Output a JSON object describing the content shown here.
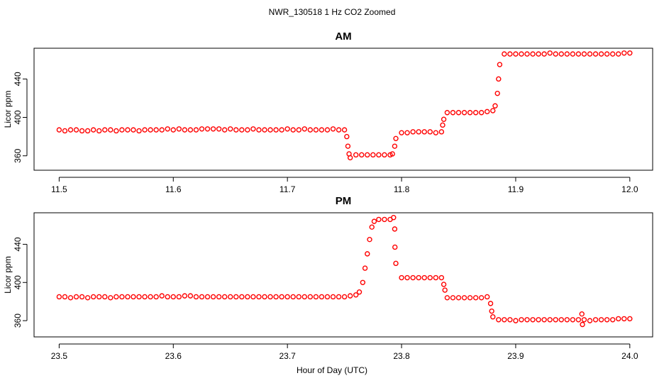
{
  "title": "NWR_130518  1 Hz CO2 Zoomed",
  "x_label": "Hour of Day (UTC)",
  "chart_data": [
    {
      "type": "scatter",
      "title": "AM",
      "y_label": "Licor ppm",
      "color": "#ff0000",
      "xlim": [
        11.478,
        12.02
      ],
      "ylim": [
        345,
        472
      ],
      "xticks": [
        11.5,
        11.6,
        11.7,
        11.8,
        11.9,
        {
          "value": 12,
          "label": "12.0"
        }
      ],
      "yticks": [
        360,
        400,
        440
      ],
      "x": [
        11.5,
        11.505,
        11.51,
        11.515,
        11.52,
        11.525,
        11.53,
        11.535,
        11.54,
        11.545,
        11.55,
        11.555,
        11.56,
        11.565,
        11.57,
        11.575,
        11.58,
        11.585,
        11.59,
        11.595,
        11.6,
        11.605,
        11.61,
        11.615,
        11.62,
        11.625,
        11.63,
        11.635,
        11.64,
        11.645,
        11.65,
        11.655,
        11.66,
        11.665,
        11.67,
        11.675,
        11.68,
        11.685,
        11.69,
        11.695,
        11.7,
        11.705,
        11.71,
        11.715,
        11.72,
        11.725,
        11.73,
        11.735,
        11.74,
        11.745,
        11.75,
        11.752,
        11.753,
        11.754,
        11.755,
        11.76,
        11.765,
        11.77,
        11.775,
        11.78,
        11.785,
        11.79,
        11.792,
        11.794,
        11.795,
        11.8,
        11.805,
        11.81,
        11.815,
        11.82,
        11.825,
        11.83,
        11.835,
        11.836,
        11.837,
        11.84,
        11.845,
        11.85,
        11.855,
        11.86,
        11.865,
        11.87,
        11.875,
        11.88,
        11.882,
        11.884,
        11.885,
        11.886,
        11.89,
        11.895,
        11.9,
        11.905,
        11.91,
        11.915,
        11.92,
        11.925,
        11.93,
        11.935,
        11.94,
        11.945,
        11.95,
        11.955,
        11.96,
        11.965,
        11.97,
        11.975,
        11.98,
        11.985,
        11.99,
        11.995,
        12.0
      ],
      "values": [
        387,
        386,
        387,
        387,
        386,
        386,
        387,
        386,
        387,
        387,
        386,
        387,
        387,
        387,
        386,
        387,
        387,
        387,
        387,
        388,
        387,
        388,
        387,
        387,
        387,
        388,
        388,
        388,
        388,
        387,
        388,
        387,
        387,
        387,
        388,
        387,
        387,
        387,
        387,
        387,
        388,
        387,
        387,
        388,
        387,
        387,
        387,
        387,
        388,
        387,
        387,
        380,
        370,
        362,
        358,
        361,
        361,
        361,
        361,
        361,
        361,
        361,
        362,
        370,
        378,
        384,
        384,
        385,
        385,
        385,
        385,
        384,
        385,
        392,
        398,
        405,
        405,
        405,
        405,
        405,
        405,
        405,
        406,
        407,
        412,
        425,
        440,
        455,
        466,
        466,
        466,
        466,
        466,
        466,
        466,
        466,
        467,
        466,
        466,
        466,
        466,
        466,
        466,
        466,
        466,
        466,
        466,
        466,
        466,
        467,
        467
      ]
    },
    {
      "type": "scatter",
      "title": "PM",
      "y_label": "Licor ppm",
      "color": "#ff0000",
      "xlim": [
        23.478,
        24.02
      ],
      "ylim": [
        343,
        473
      ],
      "xticks": [
        23.5,
        23.6,
        23.7,
        23.8,
        23.9,
        {
          "value": 24,
          "label": "24.0"
        }
      ],
      "yticks": [
        360,
        400,
        440
      ],
      "x": [
        23.5,
        23.505,
        23.51,
        23.515,
        23.52,
        23.525,
        23.53,
        23.535,
        23.54,
        23.545,
        23.55,
        23.555,
        23.56,
        23.565,
        23.57,
        23.575,
        23.58,
        23.585,
        23.59,
        23.595,
        23.6,
        23.605,
        23.61,
        23.615,
        23.62,
        23.625,
        23.63,
        23.635,
        23.64,
        23.645,
        23.65,
        23.655,
        23.66,
        23.665,
        23.67,
        23.675,
        23.68,
        23.685,
        23.69,
        23.695,
        23.7,
        23.705,
        23.71,
        23.715,
        23.72,
        23.725,
        23.73,
        23.735,
        23.74,
        23.745,
        23.75,
        23.755,
        23.76,
        23.763,
        23.766,
        23.768,
        23.77,
        23.772,
        23.774,
        23.776,
        23.78,
        23.785,
        23.79,
        23.793,
        23.794,
        23.7942,
        23.795,
        23.8,
        23.805,
        23.81,
        23.815,
        23.82,
        23.825,
        23.83,
        23.835,
        23.837,
        23.838,
        23.84,
        23.845,
        23.85,
        23.855,
        23.86,
        23.865,
        23.87,
        23.875,
        23.878,
        23.879,
        23.88,
        23.885,
        23.89,
        23.895,
        23.9,
        23.905,
        23.91,
        23.915,
        23.92,
        23.925,
        23.93,
        23.935,
        23.94,
        23.945,
        23.95,
        23.955,
        23.96,
        23.965,
        23.97,
        23.975,
        23.98,
        23.985,
        23.99,
        23.995,
        24.0,
        23.958,
        23.9585
      ],
      "values": [
        385,
        385,
        384,
        385,
        385,
        384,
        385,
        385,
        385,
        384,
        385,
        385,
        385,
        385,
        385,
        385,
        385,
        385,
        386,
        385,
        385,
        385,
        386,
        386,
        385,
        385,
        385,
        385,
        385,
        385,
        385,
        385,
        385,
        385,
        385,
        385,
        385,
        385,
        385,
        385,
        385,
        385,
        385,
        385,
        385,
        385,
        385,
        385,
        385,
        385,
        385,
        386,
        387,
        390,
        400,
        415,
        430,
        445,
        458,
        464,
        466,
        466,
        466,
        468,
        456,
        437,
        420,
        405,
        405,
        405,
        405,
        405,
        405,
        405,
        405,
        398,
        392,
        384,
        384,
        384,
        384,
        384,
        384,
        384,
        385,
        378,
        370,
        364,
        361,
        361,
        361,
        360,
        361,
        361,
        361,
        361,
        361,
        361,
        361,
        361,
        361,
        361,
        361,
        361,
        360,
        361,
        361,
        361,
        361,
        362,
        362,
        362,
        367,
        356
      ]
    }
  ]
}
